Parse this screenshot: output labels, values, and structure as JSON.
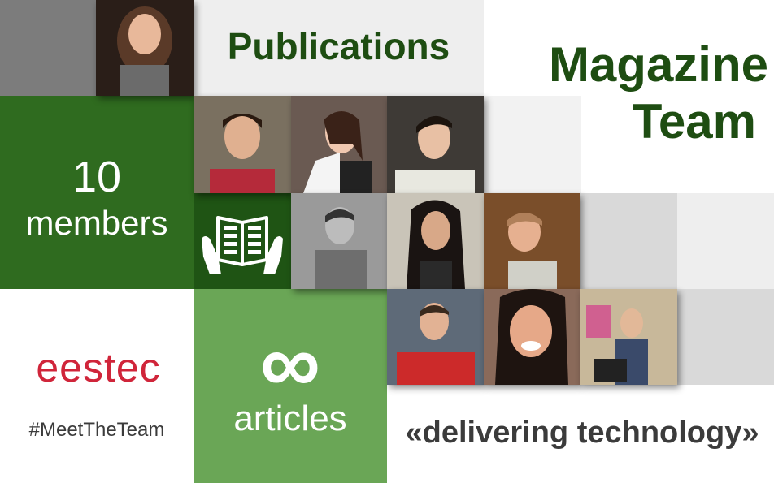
{
  "header": {
    "publications": "Publications",
    "title_line1": "Magazine",
    "title_line2": "Team"
  },
  "stats": {
    "members_count": "10",
    "members_label": "members",
    "articles_count": "∞",
    "articles_label": "articles"
  },
  "brand": {
    "logo_text": "eestec",
    "hashtag": "#MeetTheTeam"
  },
  "slogan": "«delivering technology»",
  "icons": {
    "magazine": "open-magazine-hands-icon",
    "infinity": "infinity-icon"
  },
  "colors": {
    "dark_green": "#2f6b1f",
    "mid_green": "#4c8a36",
    "light_green": "#6aa656",
    "title_green": "#1e4d12",
    "brand_red": "#d0253a",
    "gray_text": "#3b3b3b"
  }
}
